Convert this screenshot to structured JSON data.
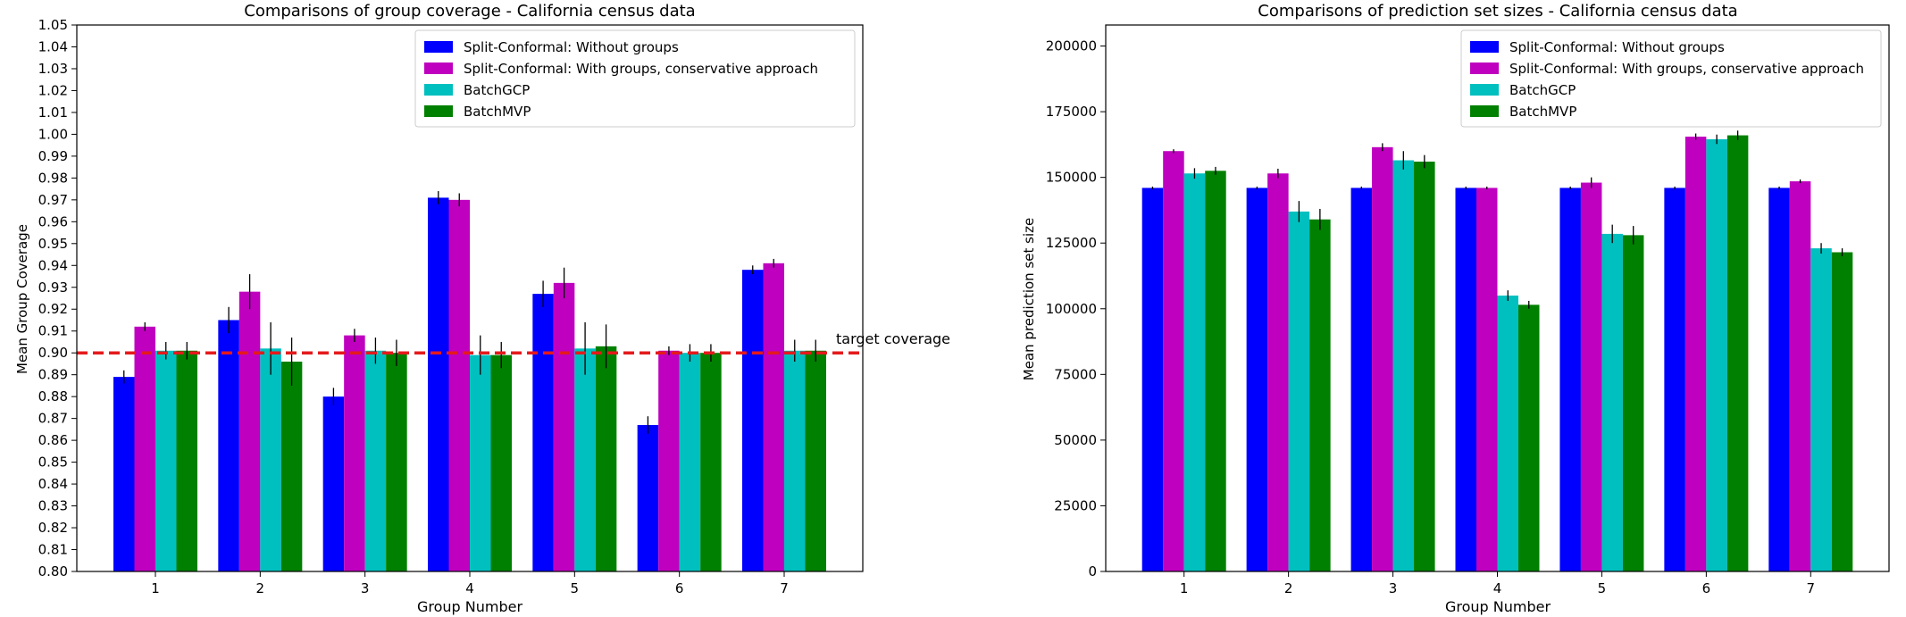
{
  "chart_data": [
    {
      "type": "bar",
      "title": "Comparisons of group coverage - California census data",
      "xlabel": "Group Number",
      "ylabel": "Mean Group Coverage",
      "categories": [
        "1",
        "2",
        "3",
        "4",
        "5",
        "6",
        "7"
      ],
      "ylim": [
        0.8,
        1.05
      ],
      "yticks": [
        "0.80",
        "0.81",
        "0.82",
        "0.83",
        "0.84",
        "0.85",
        "0.86",
        "0.87",
        "0.88",
        "0.89",
        "0.90",
        "0.91",
        "0.92",
        "0.93",
        "0.94",
        "0.95",
        "0.96",
        "0.97",
        "0.98",
        "0.99",
        "1.00",
        "1.01",
        "1.02",
        "1.03",
        "1.04",
        "1.05"
      ],
      "series": [
        {
          "name": "Split-Conformal: Without groups",
          "color": "#0000ff",
          "values": [
            0.889,
            0.915,
            0.88,
            0.971,
            0.927,
            0.867,
            0.938
          ],
          "errors": [
            0.003,
            0.006,
            0.004,
            0.003,
            0.006,
            0.004,
            0.002
          ]
        },
        {
          "name": "Split-Conformal: With groups, conservative approach",
          "color": "#bf00bf",
          "values": [
            0.912,
            0.928,
            0.908,
            0.97,
            0.932,
            0.901,
            0.941
          ],
          "errors": [
            0.002,
            0.008,
            0.003,
            0.003,
            0.007,
            0.002,
            0.002
          ]
        },
        {
          "name": "BatchGCP",
          "color": "#00bfbf",
          "values": [
            0.901,
            0.902,
            0.901,
            0.899,
            0.902,
            0.9,
            0.901
          ],
          "errors": [
            0.004,
            0.012,
            0.006,
            0.009,
            0.012,
            0.004,
            0.005
          ]
        },
        {
          "name": "BatchMVP",
          "color": "#008000",
          "values": [
            0.901,
            0.896,
            0.9,
            0.899,
            0.903,
            0.9,
            0.901
          ],
          "errors": [
            0.004,
            0.011,
            0.006,
            0.006,
            0.01,
            0.004,
            0.005
          ]
        }
      ],
      "reference_line": {
        "value": 0.9,
        "label": "target coverage",
        "color": "#e41a1c"
      },
      "legend_position": "top-right"
    },
    {
      "type": "bar",
      "title": "Comparisons of prediction set sizes - California census data",
      "xlabel": "Group Number",
      "ylabel": "Mean prediction set size",
      "categories": [
        "1",
        "2",
        "3",
        "4",
        "5",
        "6",
        "7"
      ],
      "ylim": [
        0,
        208000
      ],
      "yticks": [
        "0",
        "25000",
        "50000",
        "75000",
        "100000",
        "125000",
        "150000",
        "175000",
        "200000"
      ],
      "series": [
        {
          "name": "Split-Conformal: Without groups",
          "color": "#0000ff",
          "values": [
            146000,
            146000,
            146000,
            146000,
            146000,
            146000,
            146000
          ],
          "errors": [
            500,
            500,
            500,
            500,
            500,
            500,
            500
          ]
        },
        {
          "name": "Split-Conformal: With groups, conservative approach",
          "color": "#bf00bf",
          "values": [
            160000,
            151500,
            161500,
            146000,
            148000,
            165500,
            148500
          ],
          "errors": [
            700,
            1800,
            1500,
            500,
            2000,
            1200,
            700
          ]
        },
        {
          "name": "BatchGCP",
          "color": "#00bfbf",
          "values": [
            151500,
            137000,
            156500,
            105000,
            128500,
            164500,
            123000
          ],
          "errors": [
            2000,
            4000,
            3500,
            2000,
            3500,
            1800,
            2000
          ]
        },
        {
          "name": "BatchMVP",
          "color": "#008000",
          "values": [
            152500,
            134000,
            156000,
            101500,
            128000,
            166000,
            121500
          ],
          "errors": [
            1500,
            4000,
            2500,
            1500,
            3500,
            1800,
            1500
          ]
        }
      ],
      "legend_position": "top-right"
    }
  ]
}
